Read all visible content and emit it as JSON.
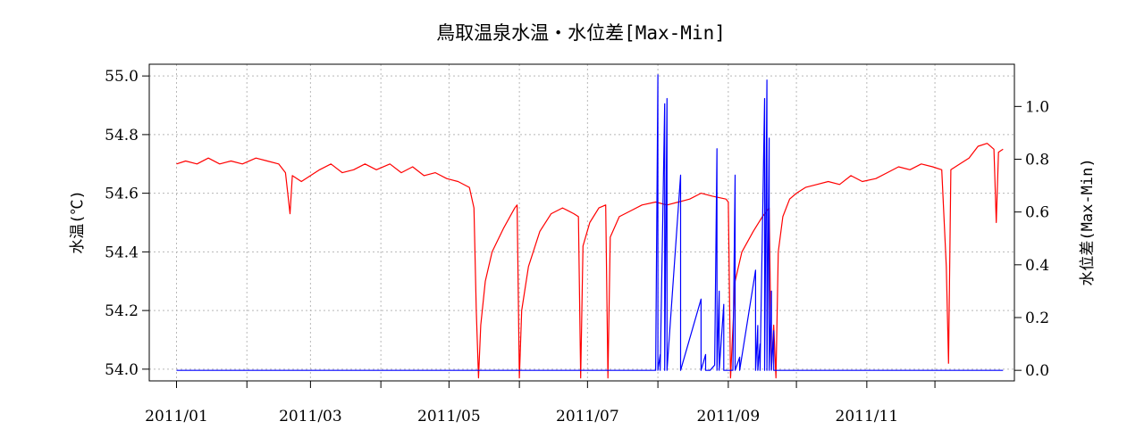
{
  "chart_data": {
    "type": "line",
    "title": "鳥取温泉水温・水位差[Max-Min]",
    "ylabel_left": "水温(℃)",
    "ylabel_right": "水位差(Max-Min)",
    "grid": true,
    "x_range": [
      "2010-12-20",
      "2012-01-05"
    ],
    "x_ticks": [
      "2011-01-01",
      "2011-02-01",
      "2011-03-01",
      "2011-04-01",
      "2011-05-01",
      "2011-06-01",
      "2011-07-01",
      "2011-08-01",
      "2011-09-01",
      "2011-10-01",
      "2011-11-01",
      "2011-12-01"
    ],
    "x_tick_labels": [
      "2011/01",
      "2011/03",
      "2011/05",
      "2011/07",
      "2011/09",
      "2011/11"
    ],
    "ylim_left": [
      53.96,
      55.04
    ],
    "yticks_left": [
      "54.0",
      "54.2",
      "54.4",
      "54.6",
      "54.8",
      "55.0"
    ],
    "ylim_right": [
      -0.04,
      1.16
    ],
    "yticks_right": [
      "0.0",
      "0.2",
      "0.4",
      "0.6",
      "0.8",
      "1.0"
    ],
    "series": [
      {
        "axis": "left",
        "color": "#ff0000",
        "points": [
          [
            "2011-01-01",
            54.7
          ],
          [
            "2011-01-05",
            54.71
          ],
          [
            "2011-01-10",
            54.7
          ],
          [
            "2011-01-15",
            54.72
          ],
          [
            "2011-01-20",
            54.7
          ],
          [
            "2011-01-25",
            54.71
          ],
          [
            "2011-01-30",
            54.7
          ],
          [
            "2011-02-05",
            54.72
          ],
          [
            "2011-02-10",
            54.71
          ],
          [
            "2011-02-15",
            54.7
          ],
          [
            "2011-02-18",
            54.67
          ],
          [
            "2011-02-20",
            54.53
          ],
          [
            "2011-02-21",
            54.66
          ],
          [
            "2011-02-25",
            54.64
          ],
          [
            "2011-03-01",
            54.66
          ],
          [
            "2011-03-05",
            54.68
          ],
          [
            "2011-03-10",
            54.7
          ],
          [
            "2011-03-15",
            54.67
          ],
          [
            "2011-03-20",
            54.68
          ],
          [
            "2011-03-25",
            54.7
          ],
          [
            "2011-03-30",
            54.68
          ],
          [
            "2011-04-05",
            54.7
          ],
          [
            "2011-04-10",
            54.67
          ],
          [
            "2011-04-15",
            54.69
          ],
          [
            "2011-04-20",
            54.66
          ],
          [
            "2011-04-25",
            54.67
          ],
          [
            "2011-04-30",
            54.65
          ],
          [
            "2011-05-05",
            54.64
          ],
          [
            "2011-05-10",
            54.62
          ],
          [
            "2011-05-12",
            54.55
          ],
          [
            "2011-05-13",
            54.2
          ],
          [
            "2011-05-14",
            53.97
          ],
          [
            "2011-05-15",
            54.15
          ],
          [
            "2011-05-17",
            54.3
          ],
          [
            "2011-05-20",
            54.4
          ],
          [
            "2011-05-25",
            54.48
          ],
          [
            "2011-05-30",
            54.55
          ],
          [
            "2011-05-31",
            54.56
          ],
          [
            "2011-06-01",
            53.97
          ],
          [
            "2011-06-02",
            54.2
          ],
          [
            "2011-06-05",
            54.35
          ],
          [
            "2011-06-10",
            54.47
          ],
          [
            "2011-06-15",
            54.53
          ],
          [
            "2011-06-20",
            54.55
          ],
          [
            "2011-06-25",
            54.53
          ],
          [
            "2011-06-27",
            54.52
          ],
          [
            "2011-06-28",
            53.97
          ],
          [
            "2011-06-29",
            54.42
          ],
          [
            "2011-07-02",
            54.5
          ],
          [
            "2011-07-06",
            54.55
          ],
          [
            "2011-07-09",
            54.56
          ],
          [
            "2011-07-10",
            53.97
          ],
          [
            "2011-07-11",
            54.45
          ],
          [
            "2011-07-15",
            54.52
          ],
          [
            "2011-07-20",
            54.54
          ],
          [
            "2011-07-25",
            54.56
          ],
          [
            "2011-07-31",
            54.57
          ],
          [
            "2011-08-05",
            54.56
          ],
          [
            "2011-08-10",
            54.57
          ],
          [
            "2011-08-15",
            54.58
          ],
          [
            "2011-08-20",
            54.6
          ],
          [
            "2011-08-25",
            54.59
          ],
          [
            "2011-08-31",
            54.58
          ],
          [
            "2011-09-01",
            54.57
          ],
          [
            "2011-09-02",
            53.97
          ],
          [
            "2011-09-04",
            54.3
          ],
          [
            "2011-09-07",
            54.4
          ],
          [
            "2011-09-12",
            54.47
          ],
          [
            "2011-09-16",
            54.52
          ],
          [
            "2011-09-19",
            54.55
          ],
          [
            "2011-09-20",
            54.0
          ],
          [
            "2011-09-21",
            54.15
          ],
          [
            "2011-09-22",
            53.97
          ],
          [
            "2011-09-23",
            54.4
          ],
          [
            "2011-09-25",
            54.52
          ],
          [
            "2011-09-28",
            54.58
          ],
          [
            "2011-10-01",
            54.6
          ],
          [
            "2011-10-05",
            54.62
          ],
          [
            "2011-10-10",
            54.63
          ],
          [
            "2011-10-15",
            54.64
          ],
          [
            "2011-10-20",
            54.63
          ],
          [
            "2011-10-25",
            54.66
          ],
          [
            "2011-10-30",
            54.64
          ],
          [
            "2011-11-05",
            54.65
          ],
          [
            "2011-11-10",
            54.67
          ],
          [
            "2011-11-15",
            54.69
          ],
          [
            "2011-11-20",
            54.68
          ],
          [
            "2011-11-25",
            54.7
          ],
          [
            "2011-11-30",
            54.69
          ],
          [
            "2011-12-04",
            54.68
          ],
          [
            "2011-12-06",
            54.35
          ],
          [
            "2011-12-07",
            54.02
          ],
          [
            "2011-12-08",
            54.68
          ],
          [
            "2011-12-12",
            54.7
          ],
          [
            "2011-12-16",
            54.72
          ],
          [
            "2011-12-20",
            54.76
          ],
          [
            "2011-12-24",
            54.77
          ],
          [
            "2011-12-27",
            54.75
          ],
          [
            "2011-12-28",
            54.5
          ],
          [
            "2011-12-29",
            54.74
          ],
          [
            "2011-12-31",
            54.75
          ]
        ]
      },
      {
        "axis": "right",
        "color": "#0000ff",
        "points": [
          [
            "2011-01-01",
            0.0
          ],
          [
            "2011-07-31",
            0.0
          ],
          [
            "2011-08-01",
            1.12
          ],
          [
            "2011-08-01",
            0.0
          ],
          [
            "2011-08-02",
            0.06
          ],
          [
            "2011-08-02",
            0.0
          ],
          [
            "2011-08-04",
            1.01
          ],
          [
            "2011-08-04",
            0.0
          ],
          [
            "2011-08-05",
            1.03
          ],
          [
            "2011-08-05",
            0.0
          ],
          [
            "2011-08-11",
            0.74
          ],
          [
            "2011-08-11",
            0.0
          ],
          [
            "2011-08-20",
            0.27
          ],
          [
            "2011-08-20",
            0.0
          ],
          [
            "2011-08-22",
            0.06
          ],
          [
            "2011-08-22",
            0.0
          ],
          [
            "2011-08-24",
            0.0
          ],
          [
            "2011-08-26",
            0.02
          ],
          [
            "2011-08-27",
            0.84
          ],
          [
            "2011-08-27",
            0.0
          ],
          [
            "2011-08-28",
            0.3
          ],
          [
            "2011-08-28",
            0.0
          ],
          [
            "2011-08-30",
            0.25
          ],
          [
            "2011-08-30",
            0.0
          ],
          [
            "2011-09-03",
            0.0
          ],
          [
            "2011-09-04",
            0.74
          ],
          [
            "2011-09-04",
            0.0
          ],
          [
            "2011-09-06",
            0.05
          ],
          [
            "2011-09-06",
            0.0
          ],
          [
            "2011-09-13",
            0.38
          ],
          [
            "2011-09-13",
            0.0
          ],
          [
            "2011-09-14",
            0.17
          ],
          [
            "2011-09-14",
            0.0
          ],
          [
            "2011-09-15",
            0.1
          ],
          [
            "2011-09-15",
            0.0
          ],
          [
            "2011-09-17",
            1.03
          ],
          [
            "2011-09-17",
            0.0
          ],
          [
            "2011-09-18",
            1.1
          ],
          [
            "2011-09-18",
            0.0
          ],
          [
            "2011-09-19",
            0.88
          ],
          [
            "2011-09-19",
            0.0
          ],
          [
            "2011-09-20",
            0.3
          ],
          [
            "2011-09-20",
            0.0
          ],
          [
            "2011-09-21",
            0.15
          ],
          [
            "2011-09-21",
            0.0
          ],
          [
            "2011-12-31",
            0.0
          ]
        ]
      }
    ]
  }
}
